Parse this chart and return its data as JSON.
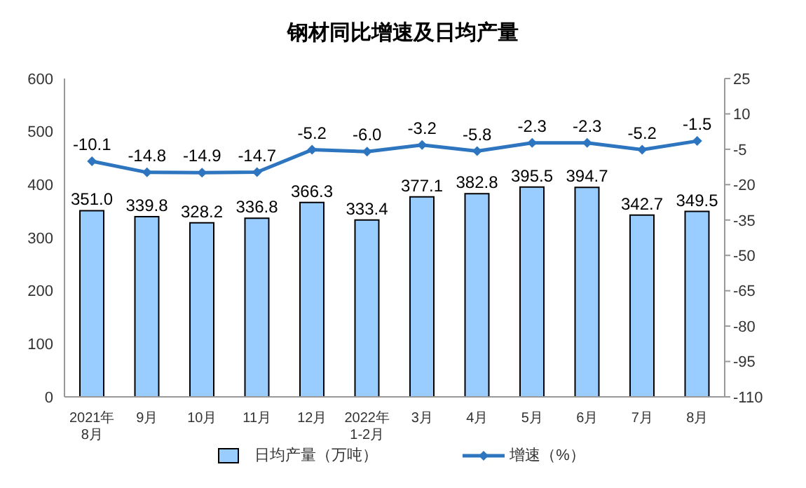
{
  "chart_data": {
    "type": "bar",
    "title": "钢材同比增速及日均产量",
    "categories": [
      "2021年\n8月",
      "9月",
      "10月",
      "11月",
      "12月",
      "2022年\n1-2月",
      "3月",
      "4月",
      "5月",
      "6月",
      "7月",
      "8月"
    ],
    "series": [
      {
        "name": "日均产量（万吨）",
        "color": "#99ccff",
        "values": [
          351.0,
          339.8,
          328.2,
          336.8,
          366.3,
          333.4,
          377.1,
          382.8,
          395.5,
          394.7,
          342.7,
          349.5
        ],
        "value_labels": [
          "351.0",
          "339.8",
          "328.2",
          "336.8",
          "366.3",
          "333.4",
          "377.1",
          "382.8",
          "395.5",
          "394.7",
          "342.7",
          "349.5"
        ]
      },
      {
        "name": "增速（%）",
        "type": "line",
        "axis": "y2",
        "color": "#2e75c0",
        "values": [
          -10.1,
          -14.8,
          -14.9,
          -14.7,
          -5.2,
          -6.0,
          -3.2,
          -5.8,
          -2.3,
          -2.3,
          -5.2,
          -1.5
        ],
        "value_labels": [
          "-10.1",
          "-14.8",
          "-14.9",
          "-14.7",
          "-5.2",
          "-6.0",
          "-3.2",
          "-5.8",
          "-2.3",
          "-2.3",
          "-5.2",
          "-1.5"
        ]
      }
    ],
    "ylim": [
      0,
      600
    ],
    "yticks": [
      0,
      100,
      200,
      300,
      400,
      500,
      600
    ],
    "y2lim": [
      -110,
      25
    ],
    "y2ticks": [
      25,
      10,
      -5,
      -20,
      -35,
      -50,
      -65,
      -80,
      -95,
      -110
    ],
    "marker": "diamond",
    "legend": "bottom"
  }
}
